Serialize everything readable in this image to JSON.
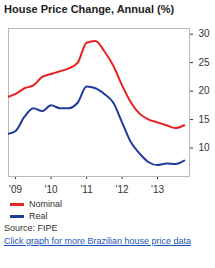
{
  "chart_data": {
    "type": "line",
    "title": "House Price Change, Annual (%)",
    "source": "Source: FIPE",
    "caption": "Click graph for more Brazilian house price data",
    "x": [
      2008.8,
      2009.0,
      2009.25,
      2009.5,
      2009.75,
      2010.0,
      2010.25,
      2010.5,
      2010.75,
      2011.0,
      2011.25,
      2011.5,
      2011.75,
      2012.0,
      2012.25,
      2012.5,
      2012.75,
      2013.0,
      2013.25,
      2013.5,
      2013.75
    ],
    "series": [
      {
        "name": "Nominal",
        "color": "#e8221e",
        "values": [
          19,
          19.5,
          20.5,
          21,
          22.5,
          23,
          23.5,
          24,
          25,
          28.5,
          28.8,
          27,
          24.5,
          21,
          18,
          16,
          15,
          14.5,
          14,
          13.5,
          14
        ]
      },
      {
        "name": "Real",
        "color": "#1f3c9c",
        "values": [
          12.5,
          13,
          15.5,
          17,
          16.5,
          17.5,
          17,
          17,
          18,
          20.8,
          20.5,
          19.5,
          18,
          14.5,
          11,
          9,
          7.5,
          7,
          7.3,
          7.2,
          7.8
        ]
      }
    ],
    "xlim": [
      2008.8,
      2013.9
    ],
    "xticks": [
      {
        "value": 2009,
        "label": "'09"
      },
      {
        "value": 2010,
        "label": "'10"
      },
      {
        "value": 2011,
        "label": "'11"
      },
      {
        "value": 2012,
        "label": "'12"
      },
      {
        "value": 2013,
        "label": "'13"
      }
    ],
    "ylim": [
      5,
      31
    ],
    "yticks": [
      10,
      15,
      20,
      25,
      30
    ],
    "grid": false,
    "legend": "bottom"
  }
}
